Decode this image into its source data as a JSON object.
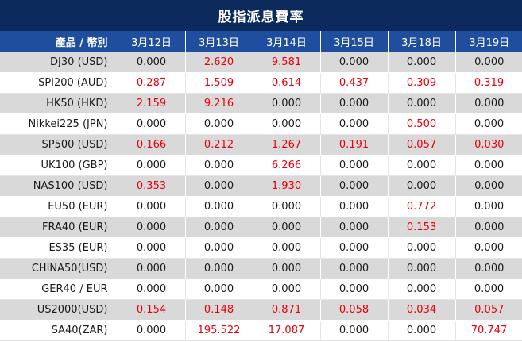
{
  "title": "股指派息費率",
  "header": {
    "product_label": "產品 / 幣別",
    "dates": [
      "3月12日",
      "3月13日",
      "3月14日",
      "3月15日",
      "3月18日",
      "3月19日"
    ]
  },
  "rows": [
    {
      "product": "DJ30 (USD)",
      "values": [
        "0.000",
        "2.620",
        "9.581",
        "0.000",
        "0.000",
        "0.000"
      ]
    },
    {
      "product": "SPI200 (AUD)",
      "values": [
        "0.287",
        "1.509",
        "0.614",
        "0.437",
        "0.309",
        "0.319"
      ]
    },
    {
      "product": "HK50 (HKD)",
      "values": [
        "2.159",
        "9.216",
        "0.000",
        "0.000",
        "0.000",
        "0.000"
      ]
    },
    {
      "product": "Nikkei225 (JPN)",
      "values": [
        "0.000",
        "0.000",
        "0.000",
        "0.000",
        "0.500",
        "0.000"
      ]
    },
    {
      "product": "SP500 (USD)",
      "values": [
        "0.166",
        "0.212",
        "1.267",
        "0.191",
        "0.057",
        "0.030"
      ]
    },
    {
      "product": "UK100 (GBP)",
      "values": [
        "0.000",
        "0.000",
        "6.266",
        "0.000",
        "0.000",
        "0.000"
      ]
    },
    {
      "product": "NAS100 (USD)",
      "values": [
        "0.353",
        "0.000",
        "1.930",
        "0.000",
        "0.000",
        "0.000"
      ]
    },
    {
      "product": "EU50 (EUR)",
      "values": [
        "0.000",
        "0.000",
        "0.000",
        "0.000",
        "0.772",
        "0.000"
      ]
    },
    {
      "product": "FRA40 (EUR)",
      "values": [
        "0.000",
        "0.000",
        "0.000",
        "0.000",
        "0.153",
        "0.000"
      ]
    },
    {
      "product": "ES35 (EUR)",
      "values": [
        "0.000",
        "0.000",
        "0.000",
        "0.000",
        "0.000",
        "0.000"
      ]
    },
    {
      "product": "CHINA50(USD)",
      "values": [
        "0.000",
        "0.000",
        "0.000",
        "0.000",
        "0.000",
        "0.000"
      ]
    },
    {
      "product": "GER40 / EUR",
      "values": [
        "0.000",
        "0.000",
        "0.000",
        "0.000",
        "0.000",
        "0.000"
      ]
    },
    {
      "product": "US2000(USD)",
      "values": [
        "0.154",
        "0.148",
        "0.871",
        "0.058",
        "0.034",
        "0.057"
      ]
    },
    {
      "product": "SA40(ZAR)",
      "values": [
        "0.000",
        "195.522",
        "17.087",
        "0.000",
        "0.000",
        "70.747"
      ]
    }
  ],
  "colors": {
    "title_bg": "#0d2a5c",
    "header_bg": "#1f4e9e",
    "positive_value": "#e8000b",
    "zero_value": "#1a1a1a",
    "row_shade": "#d9d9d9"
  }
}
